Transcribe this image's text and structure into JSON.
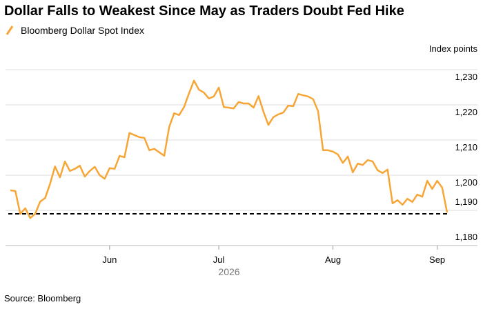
{
  "chart_data": {
    "type": "line",
    "title": "Dollar Falls to Weakest Since May as Traders Doubt Fed Hike",
    "y_label": "Index points",
    "x_label": "2026",
    "source": "Source: Bloomberg",
    "categories": [
      null,
      null,
      null,
      null,
      null,
      null,
      null,
      null,
      null,
      null,
      null,
      null,
      null,
      null,
      null,
      null,
      null,
      null,
      null,
      null,
      "Jun",
      null,
      null,
      null,
      null,
      null,
      null,
      null,
      null,
      null,
      null,
      null,
      null,
      null,
      null,
      null,
      null,
      null,
      null,
      null,
      null,
      null,
      "Jul",
      null,
      null,
      null,
      null,
      null,
      null,
      null,
      null,
      null,
      null,
      null,
      null,
      null,
      null,
      null,
      null,
      null,
      null,
      null,
      null,
      null,
      null,
      "Aug",
      null,
      null,
      null,
      null,
      null,
      null,
      null,
      null,
      null,
      null,
      null,
      null,
      null,
      null,
      null,
      null,
      null,
      null,
      null,
      null,
      "Sep",
      null,
      null
    ],
    "series": [
      {
        "name": "Bloomberg Dollar Spot Index",
        "color": "#f7a535",
        "values": [
          1195.7,
          1195.5,
          1189.0,
          1190.6,
          1187.8,
          1189.0,
          1192.5,
          1193.5,
          1197.5,
          1202.5,
          1199.4,
          1203.9,
          1201.2,
          1201.8,
          1202.7,
          1199.6,
          1201.2,
          1202.4,
          1200.0,
          1199.0,
          1202.0,
          1201.8,
          1205.5,
          1205.1,
          1212.0,
          1211.4,
          1210.8,
          1210.6,
          1207.1,
          1207.5,
          1206.5,
          1205.5,
          1213.7,
          1217.6,
          1217.1,
          1219.4,
          1223.3,
          1226.9,
          1224.3,
          1223.5,
          1221.8,
          1222.4,
          1224.9,
          1219.4,
          1219.2,
          1219.0,
          1220.8,
          1220.4,
          1220.4,
          1219.2,
          1222.5,
          1218.0,
          1214.3,
          1216.5,
          1217.3,
          1217.8,
          1219.8,
          1219.6,
          1223.1,
          1222.7,
          1222.4,
          1221.6,
          1218.2,
          1207.1,
          1207.1,
          1206.7,
          1205.9,
          1203.5,
          1205.3,
          1200.8,
          1203.3,
          1202.9,
          1204.3,
          1203.9,
          1201.4,
          1200.6,
          1201.6,
          1192.0,
          1192.9,
          1191.6,
          1193.3,
          1192.4,
          1194.5,
          1193.9,
          1198.4,
          1196.1,
          1198.4,
          1196.5,
          1189.4
        ]
      }
    ],
    "ylim": [
      1180,
      1230
    ],
    "yticks": [
      {
        "value": 1180,
        "label": "1,180"
      },
      {
        "value": 1190,
        "label": "1,190"
      },
      {
        "value": 1200,
        "label": "1,200"
      },
      {
        "value": 1210,
        "label": "1,210"
      },
      {
        "value": 1220,
        "label": "1,220"
      },
      {
        "value": 1230,
        "label": "1,230"
      }
    ],
    "grid": true
  }
}
